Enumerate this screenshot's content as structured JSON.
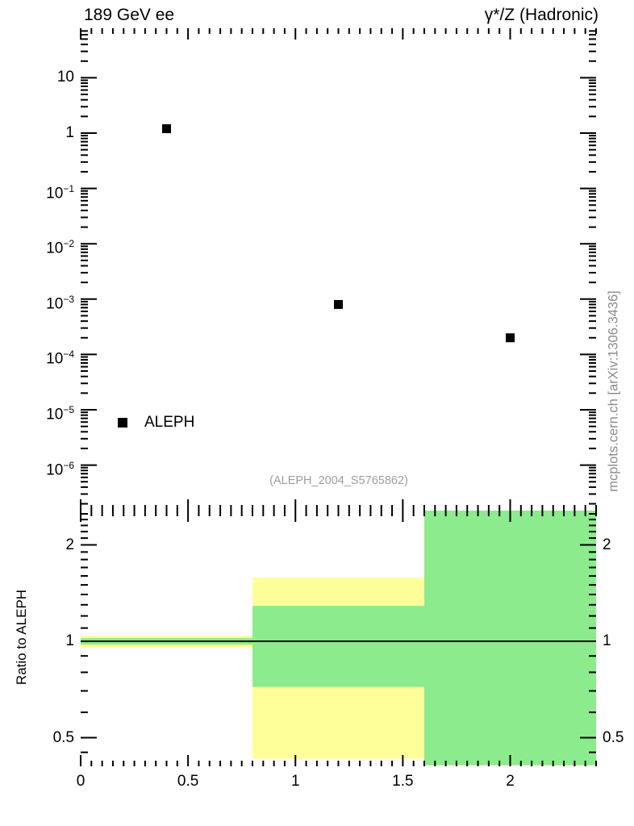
{
  "header": {
    "title_left": "189 GeV ee",
    "title_right": "γ*/Z (Hadronic)"
  },
  "watermark": {
    "text": "mcplots.cern.ch [arXiv:1306.3436]",
    "color": "#8c8c8c"
  },
  "chart_data": {
    "type": "scatter",
    "title_left": "189 GeV ee",
    "title_right": "γ*/Z (Hadronic)",
    "main_panel": {
      "type": "scatter",
      "x_range": [
        0,
        2.4
      ],
      "y_scale": "log",
      "y_range": [
        1.6e-07,
        79
      ],
      "grid": false,
      "axes": {
        "y_tick_exponents": [
          1,
          0,
          -1,
          -2,
          -3,
          -4,
          -5,
          -6
        ]
      },
      "series": [
        {
          "name": "ALEPH",
          "marker": "filled-square",
          "color": "#000000",
          "points": [
            {
              "x": 0.4,
              "y": 1.2
            },
            {
              "x": 1.2,
              "y": 0.0008
            },
            {
              "x": 2.0,
              "y": 0.0002
            }
          ]
        }
      ],
      "legend": {
        "label": "ALEPH",
        "marker_color": "#000000",
        "position": "lower-left"
      },
      "annotation": {
        "text": "(ALEPH_2004_S5765862)",
        "color": "#9e9e9e"
      }
    },
    "ratio_panel": {
      "type": "bands",
      "ylabel": "Ratio to ALEPH",
      "y_scale": "log",
      "y_range": [
        0.41,
        2.57
      ],
      "reference_line": 1,
      "band_colors": {
        "outer": "#ffff99",
        "inner": "#8ceb8c"
      },
      "bins": [
        {
          "x_low": 0.0,
          "x_high": 0.8,
          "outer": [
            0.96,
            1.04
          ],
          "inner": [
            0.977,
            1.023
          ]
        },
        {
          "x_low": 0.8,
          "x_high": 1.6,
          "outer": [
            0.43,
            1.58
          ],
          "inner": [
            0.72,
            1.29
          ]
        },
        {
          "x_low": 1.6,
          "x_high": 2.4,
          "outer": [
            0.41,
            2.57
          ],
          "inner": [
            0.41,
            2.57
          ]
        }
      ],
      "x_ticks": {
        "values": [
          0,
          0.5,
          1,
          1.5,
          2
        ],
        "labels": [
          "0",
          "0.5",
          "1",
          "1.5",
          "2"
        ]
      },
      "y_ticks": {
        "values": [
          2,
          1,
          0.5
        ],
        "labels": [
          "2",
          "1",
          "0.5"
        ]
      }
    }
  }
}
